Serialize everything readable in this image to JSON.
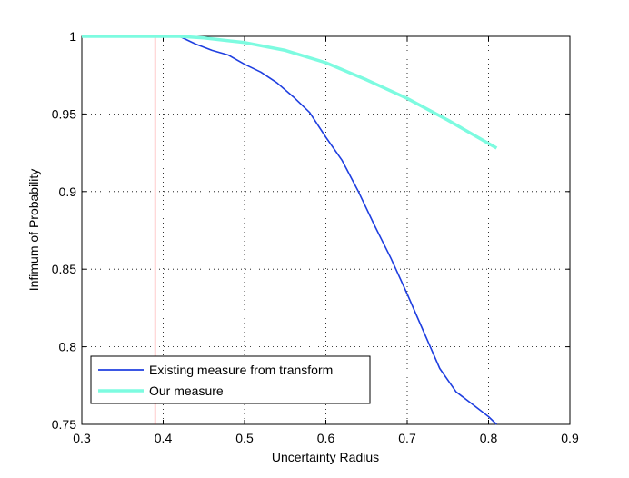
{
  "chart_data": {
    "type": "line",
    "title": "",
    "xlabel": "Uncertainty Radius",
    "ylabel": "Infimum of Probability",
    "xlim": [
      0.3,
      0.9
    ],
    "ylim": [
      0.75,
      1.0
    ],
    "xticks": [
      "0.3",
      "0.4",
      "0.5",
      "0.6",
      "0.7",
      "0.8",
      "0.9"
    ],
    "yticks": [
      "0.75",
      "0.8",
      "0.85",
      "0.9",
      "0.95",
      "1"
    ],
    "grid": true,
    "legend_position": "bottom-left",
    "vertical_line": {
      "x": 0.39,
      "color": "#ff0000"
    },
    "series": [
      {
        "name": "Existing measure from transform",
        "color": "#1f3fe0",
        "x": [
          0.3,
          0.42,
          0.44,
          0.46,
          0.48,
          0.5,
          0.52,
          0.54,
          0.56,
          0.58,
          0.6,
          0.62,
          0.64,
          0.66,
          0.68,
          0.7,
          0.72,
          0.74,
          0.76,
          0.78,
          0.8,
          0.81
        ],
        "y": [
          1.0,
          1.0,
          0.995,
          0.991,
          0.988,
          0.982,
          0.977,
          0.97,
          0.961,
          0.951,
          0.935,
          0.92,
          0.9,
          0.878,
          0.857,
          0.834,
          0.81,
          0.786,
          0.771,
          0.763,
          0.755,
          0.75
        ]
      },
      {
        "name": "Our measure",
        "color": "#7dfbe0",
        "x": [
          0.3,
          0.42,
          0.45,
          0.5,
          0.55,
          0.6,
          0.65,
          0.7,
          0.75,
          0.8,
          0.81
        ],
        "y": [
          1.0,
          1.0,
          0.999,
          0.996,
          0.991,
          0.983,
          0.972,
          0.96,
          0.946,
          0.931,
          0.928
        ]
      }
    ]
  }
}
